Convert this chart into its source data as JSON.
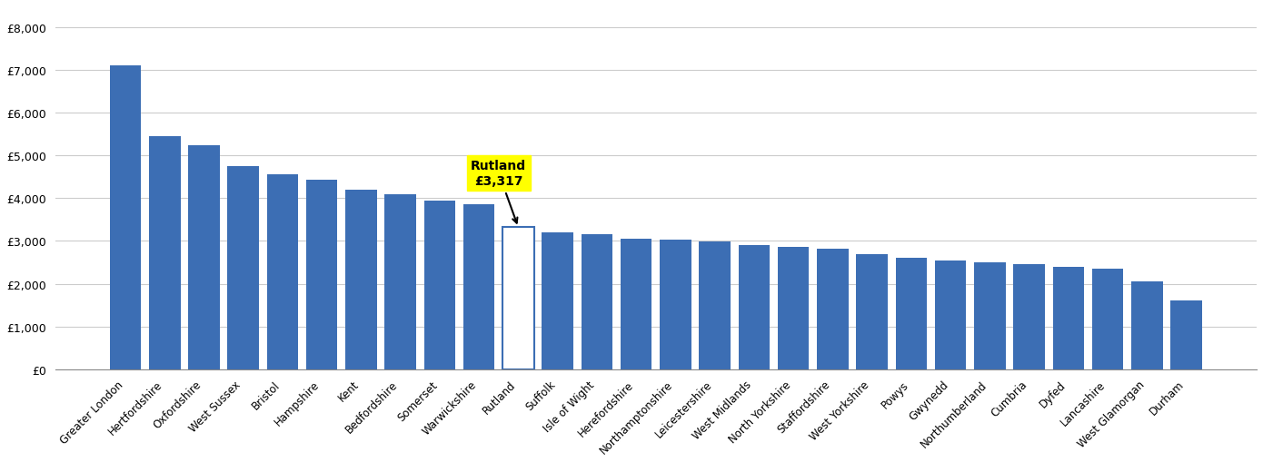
{
  "categories": [
    "Greater London",
    "Hertfordshire",
    "Oxfordshire",
    "West Sussex",
    "Bristol",
    "Hampshire",
    "Kent",
    "Bedfordshire",
    "Somerset",
    "Warwickshire",
    "Rutland",
    "Suffolk",
    "Isle of Wight",
    "Herefordshire",
    "Northamptonshire",
    "Leicestershire",
    "West Midlands",
    "North Yorkshire",
    "Staffordshire",
    "West Yorkshire",
    "Powys",
    "Gwynedd",
    "Northumberland",
    "Cumbria",
    "Dyfed",
    "Lancashire",
    "West Glamorgan",
    "Durham"
  ],
  "values": [
    7100,
    5450,
    5230,
    4750,
    4550,
    4430,
    4200,
    4100,
    3950,
    3850,
    3317,
    3200,
    3150,
    3050,
    3020,
    2980,
    2900,
    2870,
    2820,
    2700,
    2600,
    2550,
    2500,
    2450,
    2400,
    2350,
    2050,
    1600
  ],
  "rutland_value": 3317,
  "rutland_label": "Rutland\n£3,317",
  "bar_color": "#3c6eb4",
  "rutland_bar_color": "#ffffff",
  "rutland_outline_color": "#3c6eb4",
  "annotation_bg_color": "#ffff00",
  "annotation_text_color": "#000000",
  "ytick_values": [
    0,
    1000,
    2000,
    3000,
    4000,
    5000,
    6000,
    7000,
    8000
  ],
  "background_color": "#ffffff",
  "grid_color": "#cccccc"
}
